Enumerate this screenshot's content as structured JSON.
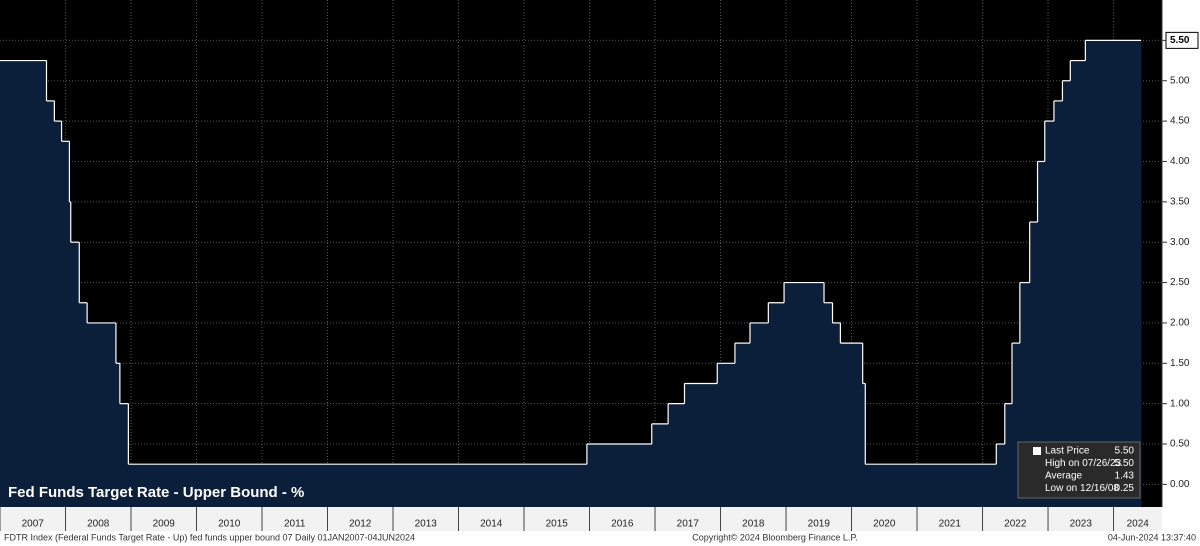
{
  "chart_data": {
    "type": "step-area",
    "title": "Fed Funds Target Rate - Upper Bound - %",
    "footer_left": "FDTR Index (Federal Funds Target Rate - Up) fed funds upper bound 07  Daily 01JAN2007-04JUN2024",
    "footer_center": "Copyright© 2024 Bloomberg Finance L.P.",
    "footer_right": "04-Jun-2024 13:37:40",
    "x": [
      2007.0,
      2007.71,
      2007.83,
      2007.94,
      2008.06,
      2008.08,
      2008.21,
      2008.33,
      2008.77,
      2008.83,
      2008.96,
      2015.96,
      2016.95,
      2017.2,
      2017.45,
      2017.95,
      2018.22,
      2018.45,
      2018.73,
      2018.97,
      2019.58,
      2019.71,
      2019.83,
      2020.17,
      2020.21,
      2022.21,
      2022.34,
      2022.45,
      2022.57,
      2022.72,
      2022.84,
      2022.95,
      2023.09,
      2023.22,
      2023.34,
      2023.57,
      2024.42
    ],
    "series": [
      {
        "name": "Last Price",
        "color": "#ffffff",
        "fill": "#0c1f3a",
        "values": [
          5.25,
          4.75,
          4.5,
          4.25,
          3.5,
          3.0,
          2.25,
          2.0,
          1.5,
          1.0,
          0.25,
          0.5,
          0.75,
          1.0,
          1.25,
          1.5,
          1.75,
          2.0,
          2.25,
          2.5,
          2.25,
          2.0,
          1.75,
          1.25,
          0.25,
          0.5,
          1.0,
          1.75,
          2.5,
          3.25,
          4.0,
          4.5,
          4.75,
          5.0,
          5.25,
          5.5,
          5.5
        ]
      }
    ],
    "xlim": [
      2007,
      2024.74
    ],
    "xticks": [
      2007,
      2008,
      2009,
      2010,
      2011,
      2012,
      2013,
      2014,
      2015,
      2016,
      2017,
      2018,
      2019,
      2020,
      2021,
      2022,
      2023,
      2024
    ],
    "ylim": [
      -0.28,
      6.0
    ],
    "yticks": [
      {
        "value": 0,
        "label": "0.00"
      },
      {
        "value": 0.5,
        "label": "0.50"
      },
      {
        "value": 1,
        "label": "1.00"
      },
      {
        "value": 1.5,
        "label": "1.50"
      },
      {
        "value": 2,
        "label": "2.00"
      },
      {
        "value": 2.5,
        "label": "2.50"
      },
      {
        "value": 3,
        "label": "3.00"
      },
      {
        "value": 3.5,
        "label": "3.50"
      },
      {
        "value": 4,
        "label": "4.00"
      },
      {
        "value": 4.5,
        "label": "4.50"
      },
      {
        "value": 5,
        "label": "5.00"
      },
      {
        "value": 5.5,
        "label": "5.50"
      }
    ],
    "grid": true,
    "last_value": {
      "value": 5.5,
      "label": "5.50"
    },
    "stats": [
      {
        "label": "Last Price",
        "value": "5.50"
      },
      {
        "label": "High on 07/26/23",
        "value": "5.50"
      },
      {
        "label": "Average",
        "value": "1.43"
      },
      {
        "label": "Low on 12/16/08",
        "value": "0.25"
      }
    ]
  }
}
